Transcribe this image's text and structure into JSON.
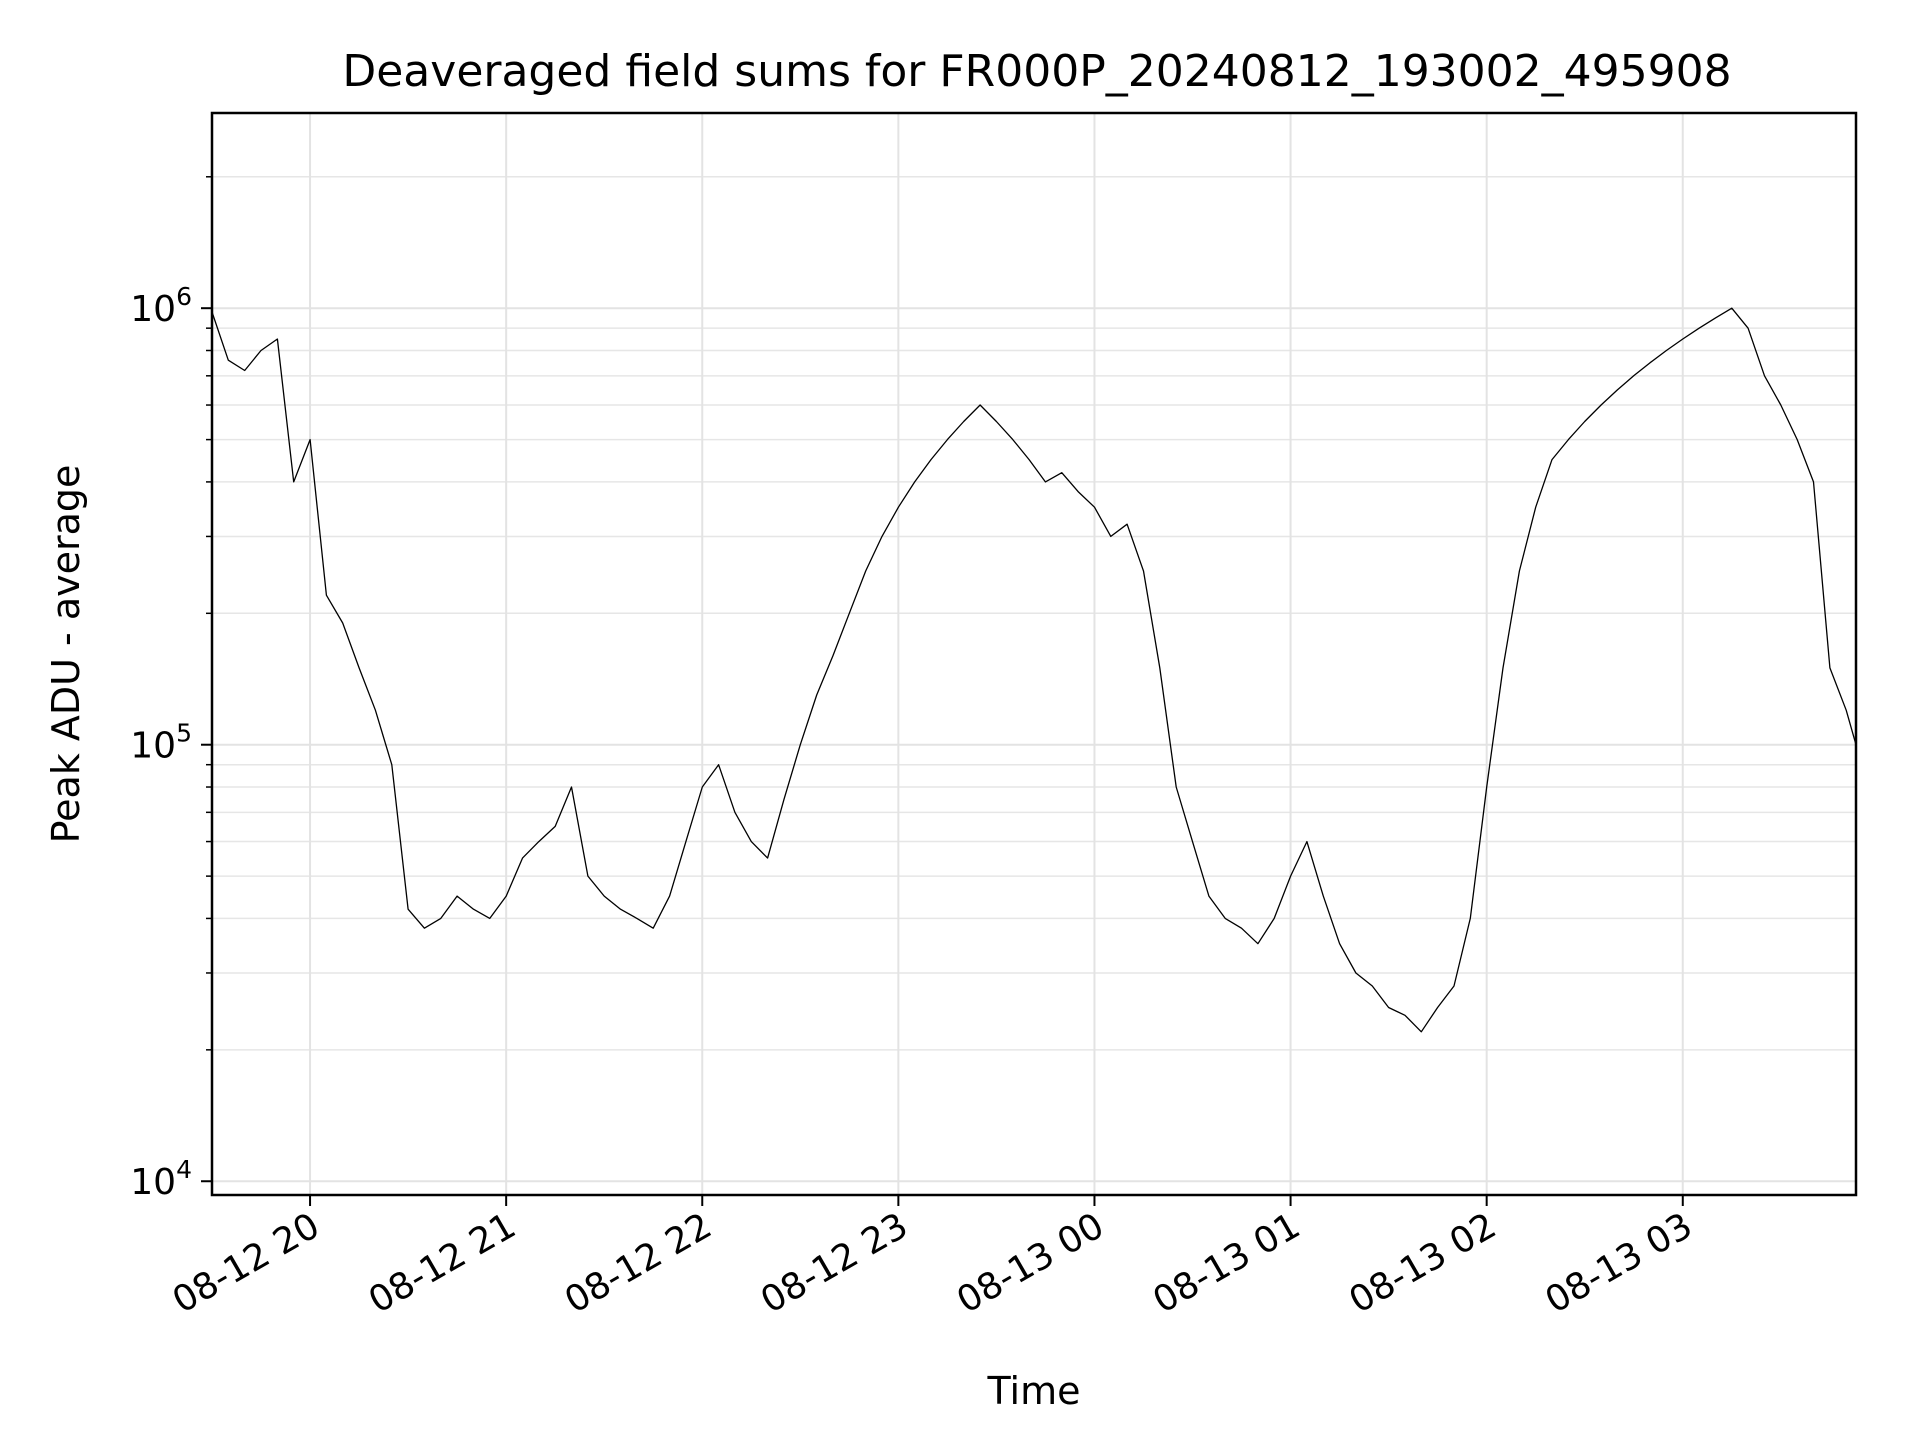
{
  "chart_data": {
    "type": "line",
    "title": "Deaveraged field sums for FR000P_20240812_193002_495908",
    "xlabel": "Time",
    "ylabel": "Peak ADU - average",
    "yscale": "log",
    "xlim": [
      "2024-08-12 19:30",
      "2024-08-13 03:53"
    ],
    "ylim": [
      9300,
      2800000
    ],
    "grid": true,
    "x_ticks": [
      {
        "value": "2024-08-12 20:00",
        "label": "08-12 20"
      },
      {
        "value": "2024-08-12 21:00",
        "label": "08-12 21"
      },
      {
        "value": "2024-08-12 22:00",
        "label": "08-12 22"
      },
      {
        "value": "2024-08-12 23:00",
        "label": "08-12 23"
      },
      {
        "value": "2024-08-13 00:00",
        "label": "08-13 00"
      },
      {
        "value": "2024-08-13 01:00",
        "label": "08-13 01"
      },
      {
        "value": "2024-08-13 02:00",
        "label": "08-13 02"
      },
      {
        "value": "2024-08-13 03:00",
        "label": "08-13 03"
      }
    ],
    "y_ticks": [
      {
        "value": 10000,
        "base": "10",
        "exp": "4"
      },
      {
        "value": 100000,
        "base": "10",
        "exp": "5"
      },
      {
        "value": 1000000,
        "base": "10",
        "exp": "6"
      }
    ],
    "series": [
      {
        "color": "#000000",
        "points": [
          [
            "2024-08-12 19:30",
            980000
          ],
          [
            "2024-08-12 19:35",
            760000
          ],
          [
            "2024-08-12 19:40",
            720000
          ],
          [
            "2024-08-12 19:45",
            800000
          ],
          [
            "2024-08-12 19:50",
            850000
          ],
          [
            "2024-08-12 19:55",
            400000
          ],
          [
            "2024-08-12 20:00",
            500000
          ],
          [
            "2024-08-12 20:05",
            220000
          ],
          [
            "2024-08-12 20:10",
            190000
          ],
          [
            "2024-08-12 20:15",
            150000
          ],
          [
            "2024-08-12 20:20",
            120000
          ],
          [
            "2024-08-12 20:25",
            90000
          ],
          [
            "2024-08-12 20:30",
            42000
          ],
          [
            "2024-08-12 20:35",
            38000
          ],
          [
            "2024-08-12 20:40",
            40000
          ],
          [
            "2024-08-12 20:45",
            45000
          ],
          [
            "2024-08-12 20:50",
            42000
          ],
          [
            "2024-08-12 20:55",
            40000
          ],
          [
            "2024-08-12 21:00",
            45000
          ],
          [
            "2024-08-12 21:05",
            55000
          ],
          [
            "2024-08-12 21:10",
            60000
          ],
          [
            "2024-08-12 21:15",
            65000
          ],
          [
            "2024-08-12 21:20",
            80000
          ],
          [
            "2024-08-12 21:25",
            50000
          ],
          [
            "2024-08-12 21:30",
            45000
          ],
          [
            "2024-08-12 21:35",
            42000
          ],
          [
            "2024-08-12 21:40",
            40000
          ],
          [
            "2024-08-12 21:45",
            38000
          ],
          [
            "2024-08-12 21:50",
            45000
          ],
          [
            "2024-08-12 21:55",
            60000
          ],
          [
            "2024-08-12 22:00",
            80000
          ],
          [
            "2024-08-12 22:05",
            90000
          ],
          [
            "2024-08-12 22:10",
            70000
          ],
          [
            "2024-08-12 22:15",
            60000
          ],
          [
            "2024-08-12 22:20",
            55000
          ],
          [
            "2024-08-12 22:25",
            75000
          ],
          [
            "2024-08-12 22:30",
            100000
          ],
          [
            "2024-08-12 22:35",
            130000
          ],
          [
            "2024-08-12 22:40",
            160000
          ],
          [
            "2024-08-12 22:45",
            200000
          ],
          [
            "2024-08-12 22:50",
            250000
          ],
          [
            "2024-08-12 22:55",
            300000
          ],
          [
            "2024-08-12 23:00",
            350000
          ],
          [
            "2024-08-12 23:05",
            400000
          ],
          [
            "2024-08-12 23:10",
            450000
          ],
          [
            "2024-08-12 23:15",
            500000
          ],
          [
            "2024-08-12 23:20",
            550000
          ],
          [
            "2024-08-12 23:25",
            600000
          ],
          [
            "2024-08-12 23:30",
            550000
          ],
          [
            "2024-08-12 23:35",
            500000
          ],
          [
            "2024-08-12 23:40",
            450000
          ],
          [
            "2024-08-12 23:45",
            400000
          ],
          [
            "2024-08-12 23:50",
            420000
          ],
          [
            "2024-08-12 23:55",
            380000
          ],
          [
            "2024-08-13 00:00",
            350000
          ],
          [
            "2024-08-13 00:05",
            300000
          ],
          [
            "2024-08-13 00:10",
            320000
          ],
          [
            "2024-08-13 00:15",
            250000
          ],
          [
            "2024-08-13 00:20",
            150000
          ],
          [
            "2024-08-13 00:25",
            80000
          ],
          [
            "2024-08-13 00:30",
            60000
          ],
          [
            "2024-08-13 00:35",
            45000
          ],
          [
            "2024-08-13 00:40",
            40000
          ],
          [
            "2024-08-13 00:45",
            38000
          ],
          [
            "2024-08-13 00:50",
            35000
          ],
          [
            "2024-08-13 00:55",
            40000
          ],
          [
            "2024-08-13 01:00",
            50000
          ],
          [
            "2024-08-13 01:05",
            60000
          ],
          [
            "2024-08-13 01:10",
            45000
          ],
          [
            "2024-08-13 01:15",
            35000
          ],
          [
            "2024-08-13 01:20",
            30000
          ],
          [
            "2024-08-13 01:25",
            28000
          ],
          [
            "2024-08-13 01:30",
            25000
          ],
          [
            "2024-08-13 01:35",
            24000
          ],
          [
            "2024-08-13 01:40",
            22000
          ],
          [
            "2024-08-13 01:45",
            25000
          ],
          [
            "2024-08-13 01:50",
            28000
          ],
          [
            "2024-08-13 01:55",
            40000
          ],
          [
            "2024-08-13 02:00",
            80000
          ],
          [
            "2024-08-13 02:05",
            150000
          ],
          [
            "2024-08-13 02:10",
            250000
          ],
          [
            "2024-08-13 02:15",
            350000
          ],
          [
            "2024-08-13 02:20",
            450000
          ],
          [
            "2024-08-13 02:25",
            500000
          ],
          [
            "2024-08-13 02:30",
            550000
          ],
          [
            "2024-08-13 02:35",
            600000
          ],
          [
            "2024-08-13 02:40",
            650000
          ],
          [
            "2024-08-13 02:45",
            700000
          ],
          [
            "2024-08-13 02:50",
            750000
          ],
          [
            "2024-08-13 02:55",
            800000
          ],
          [
            "2024-08-13 03:00",
            850000
          ],
          [
            "2024-08-13 03:05",
            900000
          ],
          [
            "2024-08-13 03:10",
            950000
          ],
          [
            "2024-08-13 03:15",
            1000000
          ],
          [
            "2024-08-13 03:20",
            900000
          ],
          [
            "2024-08-13 03:25",
            700000
          ],
          [
            "2024-08-13 03:30",
            600000
          ],
          [
            "2024-08-13 03:35",
            500000
          ],
          [
            "2024-08-13 03:40",
            400000
          ],
          [
            "2024-08-13 03:45",
            150000
          ],
          [
            "2024-08-13 03:50",
            120000
          ],
          [
            "2024-08-13 03:53",
            100000
          ]
        ]
      }
    ]
  }
}
